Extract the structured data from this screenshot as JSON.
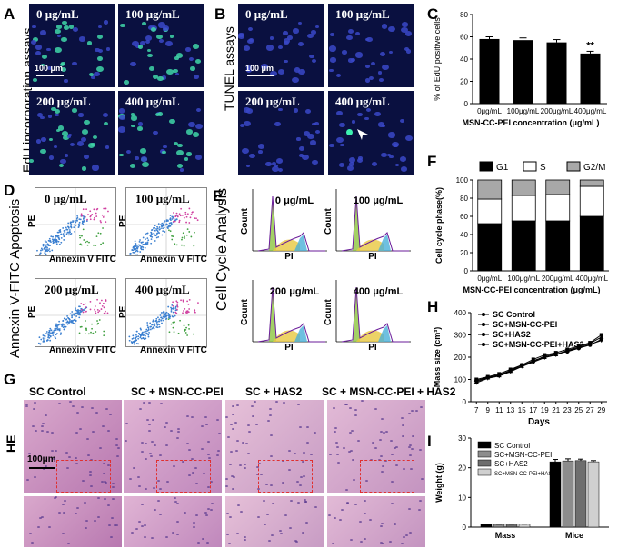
{
  "panels": {
    "A": "A",
    "B": "B",
    "C": "C",
    "D": "D",
    "E": "E",
    "F": "F",
    "G": "G",
    "H": "H",
    "I": "I"
  },
  "panel_a": {
    "title": "EdU incorporation assays",
    "labels": [
      "0 μg/mL",
      "100 μg/mL",
      "200 μg/mL",
      "400 μg/mL"
    ],
    "scale": "100 μm"
  },
  "panel_b": {
    "title": "TUNEL assays",
    "labels": [
      "0 μg/mL",
      "100 μg/mL",
      "200 μg/mL",
      "400 μg/mL"
    ],
    "scale": "100 μm"
  },
  "panel_d": {
    "title": "Annexin V-FITC Apoptosis",
    "labels": [
      "0 μg/mL",
      "100 μg/mL",
      "200 μg/mL",
      "400 μg/mL"
    ],
    "xlabel": "Annexin V FITC",
    "ylabel": "PE"
  },
  "panel_e": {
    "title": "Cell Cycle Analysis",
    "labels": [
      "0 μg/mL",
      "100 μg/mL",
      "200 μg/mL",
      "400 μg/mL"
    ],
    "xlabel": "PI",
    "ylabel": "Count"
  },
  "panel_g": {
    "side": "HE",
    "headers": [
      "SC  Control",
      "SC + MSN-CC-PEI",
      "SC + HAS2",
      "SC + MSN-CC-PEI + HAS2"
    ],
    "scale": "100μm"
  },
  "chart_data": [
    {
      "panel": "C",
      "type": "bar",
      "categories": [
        "0μg/mL",
        "100μg/mL",
        "200μg/mL",
        "400μg/mL"
      ],
      "values": [
        58,
        57,
        55,
        45
      ],
      "errors": [
        2,
        2,
        2.5,
        2
      ],
      "annotation": "**",
      "ylabel": "% of EdU positive cells",
      "xlabel": "MSN-CC-PEI concentration (μg/mL)",
      "ylim": [
        0,
        80
      ],
      "yticks": [
        0,
        20,
        40,
        60,
        80
      ]
    },
    {
      "panel": "F",
      "type": "bar",
      "stacked": true,
      "categories": [
        "0μg/mL",
        "100μg/mL",
        "200μg/mL",
        "400μg/mL"
      ],
      "series": [
        {
          "name": "G1",
          "values": [
            52,
            55,
            55,
            60
          ],
          "color": "#000000"
        },
        {
          "name": "S",
          "values": [
            27,
            28,
            29,
            33
          ],
          "color": "#ffffff"
        },
        {
          "name": "G2/M",
          "values": [
            21,
            17,
            16,
            7
          ],
          "color": "#a8a8a8"
        }
      ],
      "ylabel": "Cell cycle phase(%)",
      "xlabel": "MSN-CC-PEI concentration (μg/mL)",
      "ylim": [
        0,
        100
      ],
      "yticks": [
        0,
        20,
        40,
        60,
        80,
        100
      ]
    },
    {
      "panel": "H",
      "type": "line",
      "x": [
        7,
        9,
        11,
        13,
        15,
        17,
        19,
        21,
        23,
        25,
        27,
        29
      ],
      "series": [
        {
          "name": "SC Control",
          "values": [
            95,
            110,
            120,
            140,
            165,
            180,
            205,
            215,
            225,
            240,
            255,
            280
          ],
          "marker": "circle"
        },
        {
          "name": "SC+MSN-CC-PEI",
          "values": [
            100,
            112,
            125,
            145,
            165,
            190,
            210,
            220,
            235,
            250,
            265,
            300
          ],
          "marker": "square"
        },
        {
          "name": "SC+HAS2",
          "values": [
            90,
            108,
            118,
            138,
            160,
            185,
            200,
            212,
            230,
            245,
            262,
            290
          ],
          "marker": "triangle"
        },
        {
          "name": "SC+MSN-CC-PEI+HAS2",
          "values": [
            85,
            105,
            115,
            135,
            158,
            178,
            198,
            210,
            228,
            240,
            258,
            275
          ],
          "marker": "triangle-down"
        }
      ],
      "xlabel": "Days",
      "ylabel": "Mass size (cm³)",
      "ylim": [
        0,
        400
      ],
      "yticks": [
        0,
        100,
        200,
        300,
        400
      ],
      "xticks": [
        7,
        9,
        11,
        13,
        15,
        17,
        19,
        21,
        23,
        25,
        27,
        29
      ]
    },
    {
      "panel": "I",
      "type": "bar",
      "categories": [
        "Mass",
        "Mice"
      ],
      "series": [
        {
          "name": "SC Control",
          "values": [
            1.0,
            22.0
          ],
          "errors": [
            0.05,
            0.8
          ],
          "color": "#000000"
        },
        {
          "name": "SC+MSN-CC-PEI",
          "values": [
            0.95,
            22.3
          ],
          "errors": [
            0.05,
            0.7
          ],
          "color": "#8c8c8c"
        },
        {
          "name": "SC+HAS2",
          "values": [
            0.98,
            22.4
          ],
          "errors": [
            0.05,
            0.5
          ],
          "color": "#6e6e6e"
        },
        {
          "name": "SC+MSN-CC-PEI+HAS2",
          "values": [
            0.97,
            22.0
          ],
          "errors": [
            0.05,
            0.4
          ],
          "color": "#d0d0d0"
        }
      ],
      "ylabel": "Weight (g)",
      "ylim": [
        0,
        30
      ],
      "yticks": [
        0,
        10,
        20,
        30
      ]
    }
  ]
}
